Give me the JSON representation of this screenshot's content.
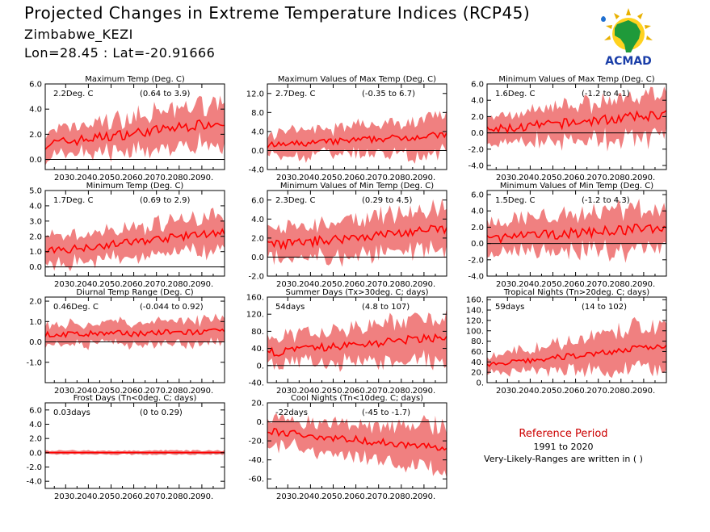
{
  "header": {
    "title": "Projected Changes in Extreme Temperature Indices (RCP45)",
    "site": "Zimbabwe_KEZI",
    "coords": "Lon=28.45 : Lat=-20.91666"
  },
  "logo": {
    "text": "ACMAD",
    "icon": "acmad-africa-logo"
  },
  "colors": {
    "band": "#f08080",
    "line": "#ff0000",
    "zero_line": "#000000",
    "frame": "#000000",
    "reference_title": "#cc0000"
  },
  "chart_data": [
    {
      "type": "line",
      "title": "Maximum Temp (Deg. C)",
      "value_label": "2.2Deg. C",
      "range_label": "(0.64 to 3.9)",
      "x": [
        2021,
        2100
      ],
      "x_ticks": [
        "2030.",
        "2040.",
        "2050.",
        "2060.",
        "2070.",
        "2080.",
        "2090."
      ],
      "ylim": [
        -0.8,
        6.0
      ],
      "y_ticks": [
        "0.0",
        "2.0",
        "4.0",
        "6.0"
      ],
      "y_tick_values": [
        0,
        2,
        4,
        6
      ],
      "trend": [
        1.2,
        3.0
      ],
      "band_half_width": [
        0.9,
        1.6
      ],
      "spread": 0.4,
      "start": 1.2,
      "end": 3.0
    },
    {
      "type": "line",
      "title": "Maximum Values of Max Temp (Deg. C)",
      "value_label": "2.7Deg. C",
      "range_label": "(-0.35 to 6.7)",
      "x": [
        2021,
        2100
      ],
      "x_ticks": [
        "2030.",
        "2040.",
        "2050.",
        "2060.",
        "2070.",
        "2080.",
        "2090."
      ],
      "ylim": [
        -4.0,
        14.0
      ],
      "y_ticks": [
        "-4.0",
        "0.0",
        "4.0",
        "8.0",
        "12.0"
      ],
      "y_tick_values": [
        -4,
        0,
        4,
        8,
        12
      ],
      "trend": [
        1.0,
        3.3
      ],
      "band_half_width": [
        2.2,
        3.6
      ],
      "spread": 0.7,
      "start": 1.0,
      "end": 3.3
    },
    {
      "type": "line",
      "title": "Minimum Values of Max Temp (Deg. C)",
      "value_label": "1.6Deg. C",
      "range_label": "(-1.2 to 4.1)",
      "x": [
        2021,
        2100
      ],
      "x_ticks": [
        "2030.",
        "2040.",
        "2050.",
        "2060.",
        "2070.",
        "2080.",
        "2090."
      ],
      "ylim": [
        -4.5,
        6.0
      ],
      "y_ticks": [
        "-4.0",
        "-2.0",
        "0.0",
        "2.0",
        "4.0",
        "6.0"
      ],
      "y_tick_values": [
        -4,
        -2,
        0,
        2,
        4,
        6
      ],
      "trend": [
        0.3,
        2.3
      ],
      "band_half_width": [
        1.6,
        2.6
      ],
      "spread": 0.6,
      "start": 0.3,
      "end": 2.3
    },
    {
      "type": "line",
      "title": "Minimum Temp (Deg. C)",
      "value_label": "1.7Deg. C",
      "range_label": "(0.69 to 2.9)",
      "x": [
        2021,
        2100
      ],
      "x_ticks": [
        "2030.",
        "2040.",
        "2050.",
        "2060.",
        "2070.",
        "2080.",
        "2090."
      ],
      "ylim": [
        -0.6,
        5.0
      ],
      "y_ticks": [
        "0.0",
        "1.0",
        "2.0",
        "3.0",
        "4.0",
        "5.0"
      ],
      "y_tick_values": [
        0,
        1,
        2,
        3,
        4,
        5
      ],
      "trend": [
        1.0,
        2.3
      ],
      "band_half_width": [
        0.8,
        1.1
      ],
      "spread": 0.25,
      "start": 1.0,
      "end": 2.3
    },
    {
      "type": "line",
      "title": "Minimum Values of Min Temp (Deg. C)",
      "value_label": "2.3Deg. C",
      "range_label": "(0.29 to 4.5)",
      "x": [
        2021,
        2100
      ],
      "x_ticks": [
        "2030.",
        "2040.",
        "2050.",
        "2060.",
        "2070.",
        "2080.",
        "2090."
      ],
      "ylim": [
        -2.0,
        7.0
      ],
      "y_ticks": [
        "-2.0",
        "0.0",
        "2.0",
        "4.0",
        "6.0"
      ],
      "y_tick_values": [
        -2,
        0,
        2,
        4,
        6
      ],
      "trend": [
        1.2,
        3.0
      ],
      "band_half_width": [
        1.5,
        2.0
      ],
      "spread": 0.5,
      "start": 1.2,
      "end": 3.0
    },
    {
      "type": "line",
      "title": "Minimum Values of Min Temp (Deg. C)",
      "value_label": "1.5Deg. C",
      "range_label": "(-1.2 to 4.3)",
      "x": [
        2021,
        2100
      ],
      "x_ticks": [
        "2030.",
        "2040.",
        "2050.",
        "2060.",
        "2070.",
        "2080.",
        "2090."
      ],
      "ylim": [
        -4.0,
        6.5
      ],
      "y_ticks": [
        "-4.0",
        "-2.0",
        "0.0",
        "2.0",
        "4.0",
        "6.0"
      ],
      "y_tick_values": [
        -4,
        -2,
        0,
        2,
        4,
        6
      ],
      "trend": [
        0.6,
        2.0
      ],
      "band_half_width": [
        1.8,
        2.5
      ],
      "spread": 0.6,
      "start": 0.6,
      "end": 2.0
    },
    {
      "type": "line",
      "title": "Diurnal Temp Range (Deg. C)",
      "value_label": "0.46Deg. C",
      "range_label": "(-0.044 to 0.92)",
      "x": [
        2021,
        2100
      ],
      "x_ticks": [
        "2030.",
        "2040.",
        "2050.",
        "2060.",
        "2070.",
        "2080.",
        "2090."
      ],
      "ylim": [
        -2.0,
        2.2
      ],
      "y_ticks": [
        "-1.0",
        "0.0",
        "1.0",
        "2.0"
      ],
      "y_tick_values": [
        -1,
        0,
        1,
        2
      ],
      "trend": [
        0.35,
        0.5
      ],
      "band_half_width": [
        0.45,
        0.55
      ],
      "spread": 0.15,
      "start": 0.35,
      "end": 0.5
    },
    {
      "type": "line",
      "title": "Summer Days (Tx>30deg. C; days)",
      "value_label": "54days",
      "range_label": "(4.8 to 107)",
      "x": [
        2021,
        2100
      ],
      "x_ticks": [
        "2030.",
        "2040.",
        "2050.",
        "2060.",
        "2070.",
        "2080.",
        "2090."
      ],
      "ylim": [
        -40,
        160
      ],
      "y_ticks": [
        "-40.",
        "0.",
        "40.",
        "80.",
        "120.",
        "160."
      ],
      "y_tick_values": [
        -40,
        0,
        40,
        80,
        120,
        160
      ],
      "trend": [
        30,
        68
      ],
      "band_half_width": [
        28,
        48
      ],
      "spread": 10,
      "start": 30,
      "end": 68
    },
    {
      "type": "line",
      "title": "Tropical Nights (Tn>20deg. C; days)",
      "value_label": "59days",
      "range_label": "(14 to 102)",
      "x": [
        2021,
        2100
      ],
      "x_ticks": [
        "2030.",
        "2040.",
        "2050.",
        "2060.",
        "2070.",
        "2080.",
        "2090."
      ],
      "ylim": [
        0,
        165
      ],
      "y_ticks": [
        "0.",
        "20.",
        "40.",
        "60.",
        "80.",
        "100.",
        "120.",
        "140.",
        "160."
      ],
      "y_tick_values": [
        0,
        20,
        40,
        60,
        80,
        100,
        120,
        140,
        160
      ],
      "trend": [
        33,
        72
      ],
      "band_half_width": [
        15,
        42
      ],
      "spread": 6,
      "start": 33,
      "end": 72
    },
    {
      "type": "line",
      "title": "Frost Days (Tn<0deg. C; days)",
      "value_label": "0.03days",
      "range_label": "(0 to 0.29)",
      "x": [
        2021,
        2100
      ],
      "x_ticks": [
        "2030.",
        "2040.",
        "2050.",
        "2060.",
        "2070.",
        "2080.",
        "2090."
      ],
      "ylim": [
        -5.0,
        7.0
      ],
      "y_ticks": [
        "-4.0",
        "-2.0",
        "0.0",
        "2.0",
        "4.0",
        "6.0"
      ],
      "y_tick_values": [
        -4,
        -2,
        0,
        2,
        4,
        6
      ],
      "trend": [
        0.03,
        0.03
      ],
      "band_half_width": [
        0.25,
        0.25
      ],
      "spread": 0.02,
      "start": 0.03,
      "end": 0.03
    },
    {
      "type": "line",
      "title": "Cool Nights (Tn<10deg. C; days)",
      "value_label": "-22days",
      "range_label": "(-45 to -1.7)",
      "x": [
        2021,
        2100
      ],
      "x_ticks": [
        "2030.",
        "2040.",
        "2050.",
        "2060.",
        "2070.",
        "2080.",
        "2090."
      ],
      "ylim": [
        -70,
        20
      ],
      "y_ticks": [
        "-60.",
        "-40.",
        "-20.",
        "0.",
        "20."
      ],
      "y_tick_values": [
        -60,
        -40,
        -20,
        0,
        20
      ],
      "trend": [
        -10,
        -28
      ],
      "band_half_width": [
        12,
        22
      ],
      "spread": 4,
      "start": -10,
      "end": -28
    }
  ],
  "reference": {
    "title": "Reference Period",
    "years": "1991 to 2020",
    "note": "Very-Likely-Ranges are written in ( )"
  }
}
